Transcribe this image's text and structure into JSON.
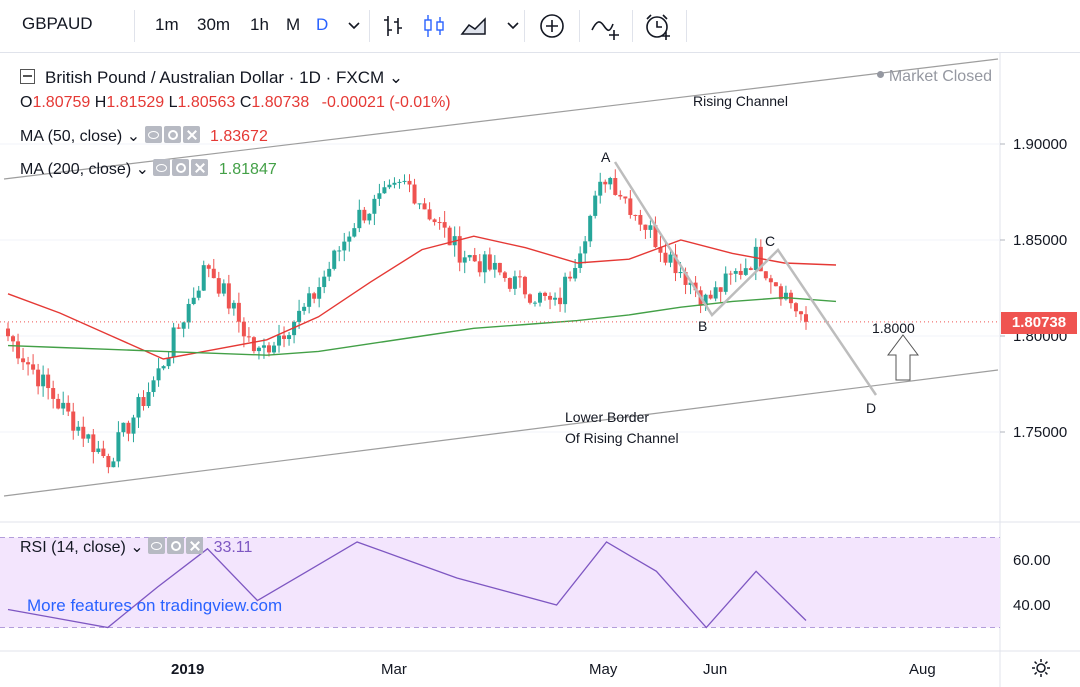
{
  "toolbar": {
    "symbol": "GBPAUD",
    "intervals": [
      "1m",
      "30m",
      "1h",
      "M",
      "D"
    ],
    "active_interval": "D",
    "icons": [
      "chevron-down-icon",
      "bar-style-icon",
      "candle-style-icon",
      "area-style-icon",
      "chevron-down-icon",
      "add-compare-icon",
      "indicators-icon",
      "alert-icon"
    ]
  },
  "header": {
    "title": "British Pound / Australian Dollar · 1D · FXCM",
    "market_status": "Market Closed",
    "ohlc": {
      "o_label": "O",
      "o": "1.80759",
      "h_label": "H",
      "h": "1.81529",
      "l_label": "L",
      "l": "1.80563",
      "c_label": "C",
      "c": "1.80738",
      "change": "-0.00021 (-0.01%)"
    }
  },
  "indicators": {
    "ma50": {
      "label": "MA (50, close)",
      "value": "1.83672",
      "color": "#e53935"
    },
    "ma200": {
      "label": "MA (200, close)",
      "value": "1.81847",
      "color": "#43a047"
    },
    "rsi": {
      "label": "RSI (14, close)",
      "value": "33.11"
    }
  },
  "price_axis": {
    "ticks": [
      "1.90000",
      "1.85000",
      "1.80000",
      "1.75000"
    ],
    "last_price": "1.80738"
  },
  "rsi_axis": {
    "ticks": [
      "60.00",
      "40.00"
    ]
  },
  "time_axis": {
    "ticks": [
      "2019",
      "Mar",
      "May",
      "Jun",
      "Aug"
    ]
  },
  "annotations": {
    "rising_channel": "Rising Channel",
    "lower_border_1": "Lower Border",
    "lower_border_2": "Of Rising Channel",
    "point_a": "A",
    "point_b": "B",
    "point_c": "C",
    "point_d": "D",
    "target": "1.8000"
  },
  "watermark": "More features on tradingview.com",
  "chart_data": {
    "type": "candlestick",
    "symbol": "GBPAUD",
    "timeframe": "1D",
    "ylim": [
      1.715,
      1.955
    ],
    "x_ticks": [
      "2019",
      "Mar",
      "May",
      "Jun",
      "Aug"
    ],
    "close_approx": [
      {
        "t": "early Dec 2018",
        "v": 1.8
      },
      {
        "t": "mid Dec 2018",
        "v": 1.765
      },
      {
        "t": "late Dec 2018",
        "v": 1.735
      },
      {
        "t": "2019 start",
        "v": 1.78
      },
      {
        "t": "mid Jan",
        "v": 1.838
      },
      {
        "t": "early Feb",
        "v": 1.79
      },
      {
        "t": "mid Feb",
        "v": 1.815
      },
      {
        "t": "Mar",
        "v": 1.862
      },
      {
        "t": "mid Mar",
        "v": 1.88
      },
      {
        "t": "early Apr",
        "v": 1.845
      },
      {
        "t": "mid Apr",
        "v": 1.83
      },
      {
        "t": "late Apr",
        "v": 1.815
      },
      {
        "t": "May (A)",
        "v": 1.885
      },
      {
        "t": "mid May",
        "v": 1.85
      },
      {
        "t": "Jun (B)",
        "v": 1.818
      },
      {
        "t": "mid Jun (C)",
        "v": 1.842
      },
      {
        "t": "last",
        "v": 1.80738
      }
    ],
    "ma50_approx": [
      1.822,
      1.812,
      1.8,
      1.788,
      1.793,
      1.798,
      1.81,
      1.828,
      1.845,
      1.852,
      1.846,
      1.838,
      1.84,
      1.85,
      1.843,
      1.838,
      1.837
    ],
    "ma200_approx": [
      1.795,
      1.794,
      1.793,
      1.792,
      1.791,
      1.79,
      1.792,
      1.796,
      1.8,
      1.804,
      1.806,
      1.808,
      1.811,
      1.815,
      1.818,
      1.82,
      1.818
    ],
    "rsi_approx": [
      38,
      34,
      30,
      48,
      65,
      42,
      55,
      68,
      60,
      52,
      46,
      40,
      68,
      55,
      30,
      55,
      33.11
    ],
    "rsi_levels": [
      70,
      30
    ],
    "rsi_axis_ticks": [
      60,
      40
    ]
  }
}
